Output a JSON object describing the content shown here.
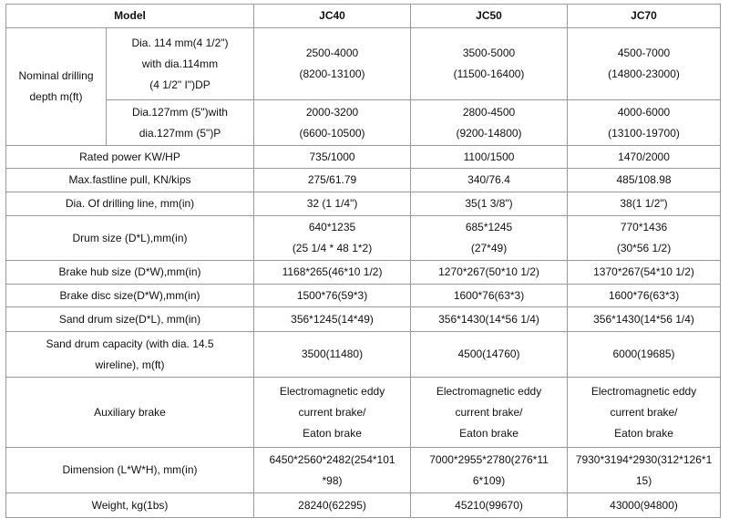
{
  "header": {
    "model": "Model",
    "models": [
      "JC40",
      "JC50",
      "JC70"
    ]
  },
  "nominal_depth": {
    "label": [
      "Nominal drilling",
      "depth m(ft)"
    ],
    "sub_rows": [
      {
        "label": [
          "Dia. 114 mm(4 1/2\")",
          "with dia.114mm",
          "(4 1/2\" I\")DP"
        ],
        "values": [
          [
            "2500-4000",
            "(8200-13100)"
          ],
          [
            "3500-5000",
            "(11500-16400)"
          ],
          [
            "4500-7000",
            "(14800-23000)"
          ]
        ]
      },
      {
        "label": [
          "Dia.127mm (5\")with",
          "dia.127mm (5\")P"
        ],
        "values": [
          [
            "2000-3200",
            "(6600-10500)"
          ],
          [
            "2800-4500",
            "(9200-14800)"
          ],
          [
            "4000-6000",
            "(13100-19700)"
          ]
        ]
      }
    ]
  },
  "rows": [
    {
      "label": [
        "Rated power KW/HP"
      ],
      "values": [
        [
          "735/1000"
        ],
        [
          "1100/1500"
        ],
        [
          "1470/2000"
        ]
      ]
    },
    {
      "label": [
        "Max.fastline pull, KN/kips"
      ],
      "values": [
        [
          "275/61.79"
        ],
        [
          "340/76.4"
        ],
        [
          "485/108.98"
        ]
      ]
    },
    {
      "label": [
        "Dia. Of drilling line, mm(in)"
      ],
      "values": [
        [
          "32 (1 1/4\")"
        ],
        [
          "35(1 3/8\")"
        ],
        [
          "38(1 1/2\")"
        ]
      ]
    },
    {
      "label": [
        "Drum size (D*L),mm(in)"
      ],
      "values": [
        [
          "640*1235",
          "(25 1/4 * 48 1*2)"
        ],
        [
          "685*1245",
          "(27*49)"
        ],
        [
          "770*1436",
          "(30*56 1/2)"
        ]
      ]
    },
    {
      "label": [
        "Brake hub size (D*W),mm(in)"
      ],
      "values": [
        [
          "1168*265(46*10 1/2)"
        ],
        [
          "1270*267(50*10 1/2)"
        ],
        [
          "1370*267(54*10 1/2)"
        ]
      ]
    },
    {
      "label": [
        "Brake disc size(D*W),mm(in)"
      ],
      "values": [
        [
          "1500*76(59*3)"
        ],
        [
          "1600*76(63*3)"
        ],
        [
          "1600*76(63*3)"
        ]
      ]
    },
    {
      "label": [
        "Sand drum size(D*L), mm(in)"
      ],
      "values": [
        [
          "356*1245(14*49)"
        ],
        [
          "356*1430(14*56 1/4)"
        ],
        [
          "356*1430(14*56 1/4)"
        ]
      ]
    },
    {
      "label": [
        "Sand drum capacity (with dia. 14.5",
        "wireline), m(ft)"
      ],
      "values": [
        [
          "3500(11480)"
        ],
        [
          "4500(14760)"
        ],
        [
          "6000(19685)"
        ]
      ]
    },
    {
      "label": [
        "Auxiliary brake"
      ],
      "values": [
        [
          "Electromagnetic eddy",
          "current brake/",
          "Eaton brake"
        ],
        [
          "Electromagnetic eddy",
          "current brake/",
          "Eaton brake"
        ],
        [
          "Electromagnetic eddy",
          "current brake/",
          "Eaton brake"
        ]
      ]
    },
    {
      "label": [
        "Dimension (L*W*H), mm(in)"
      ],
      "values": [
        [
          "6450*2560*2482(254*101",
          "*98)"
        ],
        [
          "7000*2955*2780(276*11",
          "6*109)"
        ],
        [
          "7930*3194*2930(312*126*1",
          "15)"
        ]
      ]
    },
    {
      "label": [
        "Weight, kg(1bs)"
      ],
      "values": [
        [
          "28240(62295)"
        ],
        [
          "45210(99670)"
        ],
        [
          "43000(94800)"
        ]
      ]
    }
  ]
}
